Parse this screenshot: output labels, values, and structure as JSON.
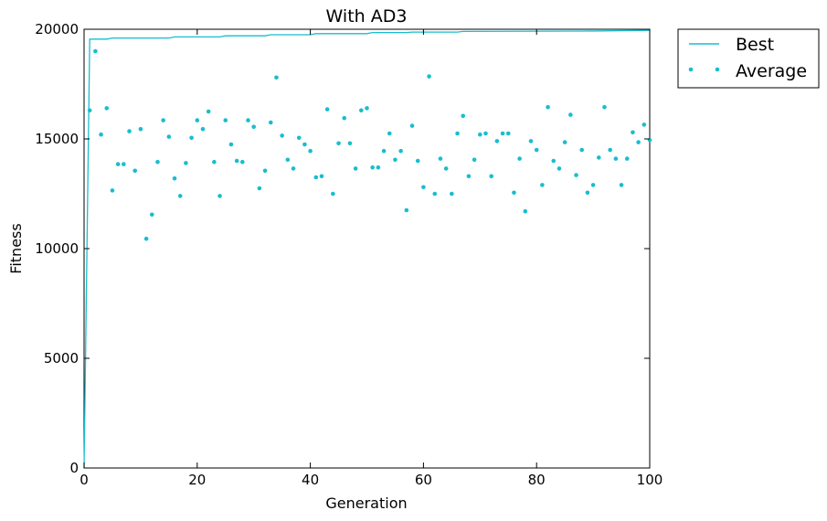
{
  "chart_data": {
    "type": "scatter",
    "title": "With AD3",
    "xlabel": "Generation",
    "ylabel": "Fitness",
    "xlim": [
      0,
      100
    ],
    "ylim": [
      0,
      20000
    ],
    "xticks": [
      0,
      20,
      40,
      60,
      80,
      100
    ],
    "yticks": [
      0,
      5000,
      10000,
      15000,
      20000
    ],
    "grid": false,
    "legend_position": "outside-top-right",
    "colors": {
      "series": "#17becf",
      "axes": "#000000"
    },
    "series": [
      {
        "name": "Best",
        "style": "line",
        "x": [
          0,
          1,
          4,
          5,
          15,
          16,
          24,
          25,
          32,
          33,
          40,
          41,
          50,
          51,
          57,
          58,
          66,
          67,
          90,
          100
        ],
        "y": [
          0,
          19550,
          19550,
          19600,
          19600,
          19650,
          19650,
          19700,
          19700,
          19750,
          19750,
          19800,
          19800,
          19850,
          19850,
          19870,
          19870,
          19900,
          19920,
          19950
        ]
      },
      {
        "name": "Average",
        "style": "markers",
        "x": [
          1,
          2,
          3,
          4,
          5,
          6,
          7,
          8,
          9,
          10,
          11,
          12,
          13,
          14,
          15,
          16,
          17,
          18,
          19,
          20,
          21,
          22,
          23,
          24,
          25,
          26,
          27,
          28,
          29,
          30,
          31,
          32,
          33,
          34,
          35,
          36,
          37,
          38,
          39,
          40,
          41,
          42,
          43,
          44,
          45,
          46,
          47,
          48,
          49,
          50,
          51,
          52,
          53,
          54,
          55,
          56,
          57,
          58,
          59,
          60,
          61,
          62,
          63,
          64,
          65,
          66,
          67,
          68,
          69,
          70,
          71,
          72,
          73,
          74,
          75,
          76,
          77,
          78,
          79,
          80,
          81,
          82,
          83,
          84,
          85,
          86,
          87,
          88,
          89,
          90,
          91,
          92,
          93,
          94,
          95,
          96,
          97,
          98,
          99,
          100
        ],
        "y": [
          16300,
          19000,
          15200,
          16400,
          12650,
          13850,
          13850,
          15350,
          13550,
          15450,
          10450,
          11550,
          13950,
          15850,
          15100,
          13200,
          12400,
          13900,
          15050,
          15850,
          15450,
          16250,
          13950,
          12400,
          15850,
          14750,
          14000,
          13950,
          15850,
          15550,
          12750,
          13550,
          15750,
          17800,
          15150,
          14050,
          13650,
          15050,
          14750,
          14450,
          13250,
          13300,
          16350,
          12500,
          14800,
          15950,
          14800,
          13650,
          16300,
          16400,
          13700,
          13700,
          14450,
          15250,
          14050,
          14450,
          11750,
          15600,
          14000,
          12800,
          17850,
          12500,
          14100,
          13650,
          12500,
          15250,
          16050,
          13300,
          14050,
          15200,
          15250,
          13300,
          14900,
          15250,
          15250,
          12550,
          14100,
          11700,
          14900,
          14500,
          12900,
          16450,
          14000,
          13650,
          14850,
          16100,
          13350,
          14500,
          12550,
          12900,
          14150,
          16450,
          14500,
          14100,
          12900,
          14100,
          15300,
          14850,
          15650,
          14950
        ]
      }
    ]
  }
}
